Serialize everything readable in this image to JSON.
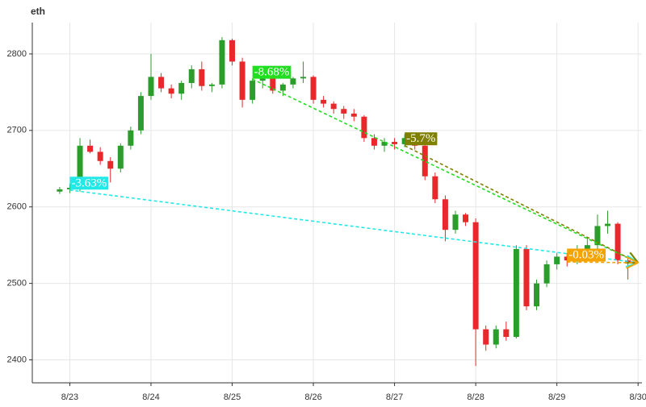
{
  "chart_data": {
    "type": "candlestick",
    "title": "eth",
    "categories": [
      null,
      "8/23",
      null,
      null,
      null,
      null,
      null,
      null,
      null,
      "8/24",
      null,
      null,
      null,
      null,
      null,
      null,
      null,
      "8/25",
      null,
      null,
      null,
      null,
      null,
      null,
      null,
      "8/26",
      null,
      null,
      null,
      null,
      null,
      null,
      null,
      "8/27",
      null,
      null,
      null,
      null,
      null,
      null,
      null,
      "8/28",
      null,
      null,
      null,
      null,
      null,
      null,
      null,
      "8/29",
      null,
      null,
      null,
      null,
      null,
      null,
      null,
      "8/30"
    ],
    "open": [
      2620,
      2623,
      2625,
      2680,
      2672,
      2660,
      2650,
      2680,
      2700,
      2745,
      2770,
      2755,
      2748,
      2762,
      2780,
      2758,
      2760,
      2818,
      2790,
      2740,
      2765,
      2768,
      2752,
      2760,
      2768,
      2770,
      2740,
      2735,
      2728,
      2722,
      2718,
      2690,
      2680,
      2685,
      2682,
      2690,
      2680,
      2640,
      2610,
      2570,
      2590,
      2580,
      2440,
      2420,
      2440,
      2430,
      2545,
      2470,
      2500,
      2525,
      2535,
      2530,
      2545,
      2550,
      2575,
      2578,
      2530,
      null
    ],
    "high": [
      2626,
      2630,
      2690,
      2688,
      2678,
      2665,
      2683,
      2705,
      2750,
      2800,
      2775,
      2760,
      2765,
      2785,
      2790,
      2762,
      2822,
      2820,
      2795,
      2768,
      2772,
      2770,
      2762,
      2770,
      2790,
      2772,
      2745,
      2738,
      2732,
      2728,
      2720,
      2695,
      2690,
      2690,
      2695,
      2695,
      2682,
      2645,
      2615,
      2595,
      2592,
      2585,
      2445,
      2445,
      2450,
      2550,
      2550,
      2505,
      2530,
      2540,
      2540,
      2550,
      2560,
      2590,
      2595,
      2580,
      2535,
      null
    ],
    "low": [
      2617,
      2618,
      2620,
      2670,
      2655,
      2632,
      2645,
      2675,
      2695,
      2740,
      2750,
      2742,
      2740,
      2755,
      2752,
      2750,
      2755,
      2785,
      2730,
      2735,
      2755,
      2748,
      2745,
      2755,
      2762,
      2735,
      2730,
      2722,
      2715,
      2712,
      2685,
      2675,
      2672,
      2675,
      2678,
      2675,
      2635,
      2605,
      2555,
      2565,
      2575,
      2392,
      2412,
      2415,
      2425,
      2428,
      2465,
      2465,
      2495,
      2518,
      2522,
      2525,
      2540,
      2545,
      2565,
      2525,
      2505,
      null
    ],
    "close": [
      2623,
      2625,
      2680,
      2672,
      2660,
      2650,
      2680,
      2700,
      2745,
      2770,
      2755,
      2748,
      2762,
      2780,
      2758,
      2760,
      2818,
      2790,
      2740,
      2765,
      2768,
      2752,
      2760,
      2768,
      2770,
      2740,
      2735,
      2728,
      2722,
      2718,
      2690,
      2680,
      2685,
      2682,
      2690,
      2680,
      2640,
      2610,
      2570,
      2590,
      2580,
      2440,
      2420,
      2440,
      2430,
      2545,
      2470,
      2500,
      2525,
      2535,
      2530,
      2545,
      2550,
      2575,
      2578,
      2530,
      2527,
      null
    ],
    "up_color": "#2a9d2a",
    "down_color": "#e8282b",
    "ylim": [
      2370,
      2841
    ],
    "yticks": [
      2400,
      2500,
      2600,
      2700,
      2800
    ],
    "grid": true,
    "annotations": [
      {
        "label": "-3.63%",
        "from_index": 1,
        "from_value": 2622,
        "to_index": 57,
        "to_value": 2527,
        "color": "#22e8e8"
      },
      {
        "label": "-8.68%",
        "from_index": 19,
        "from_value": 2767,
        "to_index": 57,
        "to_value": 2527,
        "color": "#22dd22"
      },
      {
        "label": "-5.7%",
        "from_index": 34,
        "from_value": 2680,
        "to_index": 57,
        "to_value": 2527,
        "color": "#7f7f00"
      },
      {
        "label": "-0.03%",
        "from_index": 50,
        "from_value": 2528,
        "to_index": 57,
        "to_value": 2527,
        "color": "#f5a300"
      }
    ]
  }
}
